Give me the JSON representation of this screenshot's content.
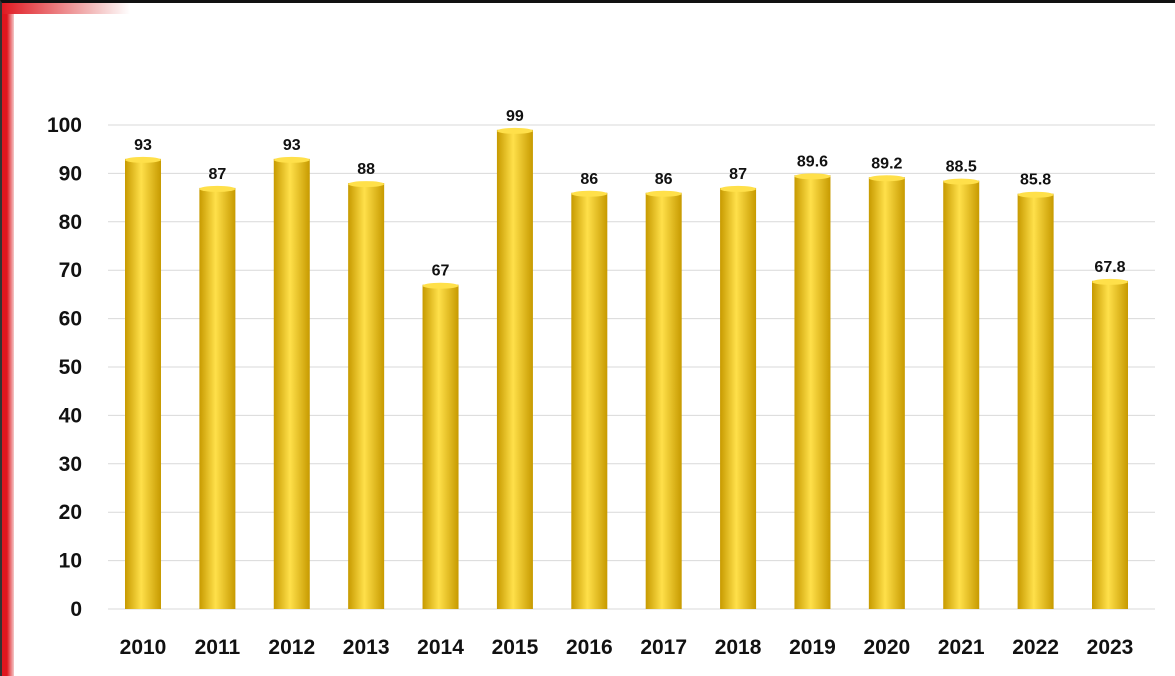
{
  "chart_data": {
    "type": "bar",
    "title": "",
    "xlabel": "",
    "ylabel": "",
    "categories": [
      "2010",
      "2011",
      "2012",
      "2013",
      "2014",
      "2015",
      "2016",
      "2017",
      "2018",
      "2019",
      "2020",
      "2021",
      "2022",
      "2023"
    ],
    "values": [
      93,
      87,
      93,
      88,
      67,
      99,
      86,
      86,
      87,
      89.6,
      89.2,
      88.5,
      85.8,
      67.8
    ],
    "data_labels": [
      "93",
      "87",
      "93",
      "88",
      "67",
      "99",
      "86",
      "86",
      "87",
      "89.6",
      "89.2",
      "88.5",
      "85.8",
      "67.8"
    ],
    "ylim": [
      0,
      100
    ],
    "yticks": [
      "0",
      "10",
      "20",
      "30",
      "40",
      "50",
      "60",
      "70",
      "80",
      "90",
      "100"
    ],
    "grid": true,
    "legend": "none",
    "colors": {
      "bar_light": "#ffe04a",
      "bar_mid": "#f5c400",
      "bar_dark": "#c79a00",
      "grid": "#d9d9d9",
      "text": "#111111",
      "accent": "#e0161e"
    }
  }
}
